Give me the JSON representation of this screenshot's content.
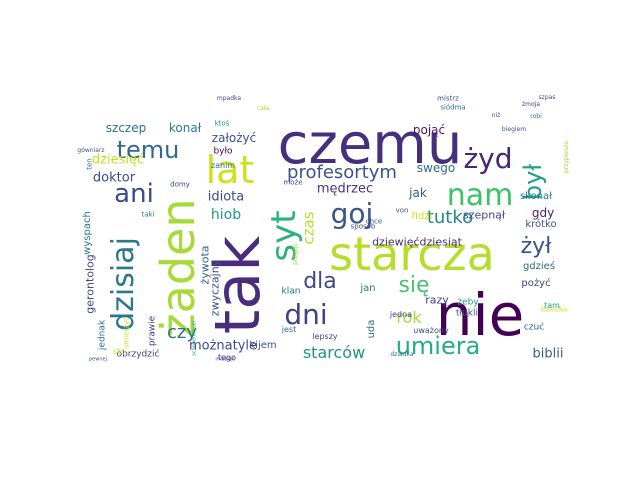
{
  "word_cloud": {
    "palette": [
      "#440154",
      "#46327e",
      "#365c8d",
      "#277f8e",
      "#1fa187",
      "#4ac16d",
      "#a0da39",
      "#c8e020"
    ],
    "words": [
      {
        "text": "czemu",
        "color": "#46307e",
        "rotated": false,
        "weight": 1.0
      },
      {
        "text": "nie",
        "color": "#440154",
        "rotated": false,
        "weight": 0.97
      },
      {
        "text": "tak",
        "color": "#472d7b",
        "rotated": true,
        "weight": 0.9
      },
      {
        "text": "starcza",
        "color": "#b5de2b",
        "rotated": false,
        "weight": 0.85
      },
      {
        "text": "żaden",
        "color": "#a5db36",
        "rotated": true,
        "weight": 0.78
      },
      {
        "text": "lat",
        "color": "#d0e11c",
        "rotated": false,
        "weight": 0.65
      },
      {
        "text": "nam",
        "color": "#3ec06b",
        "rotated": false,
        "weight": 0.62
      },
      {
        "text": "syt",
        "color": "#2db27d",
        "rotated": true,
        "weight": 0.6
      },
      {
        "text": "goj",
        "color": "#39558c",
        "rotated": false,
        "weight": 0.55
      },
      {
        "text": "dzisiaj",
        "color": "#2a788e",
        "rotated": true,
        "weight": 0.55
      },
      {
        "text": "ani",
        "color": "#3e4a89",
        "rotated": false,
        "weight": 0.5
      },
      {
        "text": "żyd",
        "color": "#482576",
        "rotated": false,
        "weight": 0.5
      },
      {
        "text": "dni",
        "color": "#424086",
        "rotated": false,
        "weight": 0.48
      },
      {
        "text": "umiera",
        "color": "#26ad81",
        "rotated": false,
        "weight": 0.47
      },
      {
        "text": "temu",
        "color": "#31688e",
        "rotated": false,
        "weight": 0.45
      },
      {
        "text": "był",
        "color": "#1f9e89",
        "rotated": true,
        "weight": 0.42
      },
      {
        "text": "żył",
        "color": "#3b518b",
        "rotated": false,
        "weight": 0.4
      },
      {
        "text": "się",
        "color": "#4ac16d",
        "rotated": false,
        "weight": 0.4
      },
      {
        "text": "dla",
        "color": "#3e4989",
        "rotated": false,
        "weight": 0.38
      },
      {
        "text": "profesortym",
        "color": "#3b528b",
        "rotated": false,
        "weight": 0.35
      },
      {
        "text": "tutko",
        "color": "#24878e",
        "rotated": false,
        "weight": 0.34
      },
      {
        "text": "czy",
        "color": "#2e6e8e",
        "rotated": false,
        "weight": 0.33
      },
      {
        "text": "czas",
        "color": "#b8de29",
        "rotated": true,
        "weight": 0.3
      },
      {
        "text": "rok",
        "color": "#a2da37",
        "rotated": false,
        "weight": 0.3
      },
      {
        "text": "starców",
        "color": "#21918c",
        "rotated": false,
        "weight": 0.28
      },
      {
        "text": "hiob",
        "color": "#1f998a",
        "rotated": false,
        "weight": 0.27
      },
      {
        "text": "mędrzec",
        "color": "#453581",
        "rotated": false,
        "weight": 0.26
      },
      {
        "text": "możnatyle",
        "color": "#404588",
        "rotated": false,
        "weight": 0.26
      },
      {
        "text": "biblii",
        "color": "#355f8d",
        "rotated": false,
        "weight": 0.25
      },
      {
        "text": "dziesięć",
        "color": "#c2df23",
        "rotated": false,
        "weight": 0.24
      },
      {
        "text": "doktor",
        "color": "#3f4788",
        "rotated": false,
        "weight": 0.24
      },
      {
        "text": "idiota",
        "color": "#3e4c8a",
        "rotated": false,
        "weight": 0.24
      },
      {
        "text": "szczep",
        "color": "#2c738e",
        "rotated": false,
        "weight": 0.22
      },
      {
        "text": "konał",
        "color": "#297b8e",
        "rotated": false,
        "weight": 0.22
      },
      {
        "text": "założyć",
        "color": "#3b528b",
        "rotated": false,
        "weight": 0.21
      },
      {
        "text": "pojąć",
        "color": "#48186a",
        "rotated": false,
        "weight": 0.2
      },
      {
        "text": "swego",
        "color": "#2f6c8e",
        "rotated": false,
        "weight": 0.2
      },
      {
        "text": "jak",
        "color": "#34608d",
        "rotated": false,
        "weight": 0.2
      },
      {
        "text": "gdy",
        "color": "#482173",
        "rotated": false,
        "weight": 0.2
      },
      {
        "text": "zwyczajny",
        "color": "#3a538b",
        "rotated": true,
        "weight": 0.19
      },
      {
        "text": "gerontolog",
        "color": "#3e4a89",
        "rotated": true,
        "weight": 0.19
      },
      {
        "text": "żywota",
        "color": "#365d8d",
        "rotated": true,
        "weight": 0.18
      },
      {
        "text": "razy",
        "color": "#414487",
        "rotated": false,
        "weight": 0.18
      },
      {
        "text": "szepnął",
        "color": "#3f4889",
        "rotated": false,
        "weight": 0.16
      },
      {
        "text": "dziewięćdziesiąt",
        "color": "#482979",
        "rotated": false,
        "weight": 0.16
      },
      {
        "text": "skonał",
        "color": "#2a768e",
        "rotated": false,
        "weight": 0.16
      },
      {
        "text": "krótko",
        "color": "#39568c",
        "rotated": false,
        "weight": 0.15
      },
      {
        "text": "jan",
        "color": "#2c728e",
        "rotated": false,
        "weight": 0.16
      },
      {
        "text": "uda",
        "color": "#31678e",
        "rotated": true,
        "weight": 0.16
      },
      {
        "text": "pożyć",
        "color": "#433e85",
        "rotated": false,
        "weight": 0.16
      },
      {
        "text": "gdzieś",
        "color": "#30698e",
        "rotated": false,
        "weight": 0.14
      },
      {
        "text": "wyspach",
        "color": "#2a778e",
        "rotated": true,
        "weight": 0.14
      },
      {
        "text": "fidżi",
        "color": "#d8e219",
        "rotated": false,
        "weight": 0.13
      },
      {
        "text": "jednak",
        "color": "#2f6b8e",
        "rotated": true,
        "weight": 0.13
      },
      {
        "text": "prawie",
        "color": "#453882",
        "rotated": true,
        "weight": 0.13
      },
      {
        "text": "kijem",
        "color": "#3d4d8a",
        "rotated": false,
        "weight": 0.13
      },
      {
        "text": "było",
        "color": "#440154",
        "rotated": false,
        "weight": 0.12
      },
      {
        "text": "tłukli",
        "color": "#3c4f8a",
        "rotated": false,
        "weight": 0.12
      },
      {
        "text": "żeby",
        "color": "#1f958b",
        "rotated": false,
        "weight": 0.12
      },
      {
        "text": "klan",
        "color": "#2d708e",
        "rotated": false,
        "weight": 0.12
      },
      {
        "text": "obrzydzić",
        "color": "#433d84",
        "rotated": false,
        "weight": 0.12
      },
      {
        "text": "czuć",
        "color": "#31688e",
        "rotated": false,
        "weight": 0.12
      },
      {
        "text": "tam",
        "color": "#1fa088",
        "rotated": false,
        "weight": 0.12
      },
      {
        "text": "uważony",
        "color": "#3f4788",
        "rotated": false,
        "weight": 0.11
      },
      {
        "text": "zanim",
        "color": "#2c738e",
        "rotated": false,
        "weight": 0.11
      },
      {
        "text": "jedna",
        "color": "#433e85",
        "rotated": false,
        "weight": 0.1
      },
      {
        "text": "jest",
        "color": "#2c728e",
        "rotated": false,
        "weight": 0.1
      },
      {
        "text": "lepszy",
        "color": "#3f4889",
        "rotated": false,
        "weight": 0.1
      },
      {
        "text": "siódma",
        "color": "#2d718e",
        "rotated": false,
        "weight": 0.1
      },
      {
        "text": "ten",
        "color": "#2c728e",
        "rotated": true,
        "weight": 0.1
      },
      {
        "text": "ktoś",
        "color": "#1f9a8a",
        "rotated": false,
        "weight": 0.09
      },
      {
        "text": "tego",
        "color": "#472d7b",
        "rotated": false,
        "weight": 0.09
      },
      {
        "text": "sto",
        "color": "#c8e020",
        "rotated": false,
        "weight": 0.09
      },
      {
        "text": "sposób",
        "color": "#3e4c8a",
        "rotated": false,
        "weight": 0.09
      },
      {
        "text": "chce",
        "color": "#3b528b",
        "rotated": false,
        "weight": 0.09
      },
      {
        "text": "dziecka",
        "color": "#cae11f",
        "rotated": false,
        "weight": 0.09
      },
      {
        "text": "umierzyć",
        "color": "#cde11d",
        "rotated": true,
        "weight": 0.08
      },
      {
        "text": "domy",
        "color": "#3f4788",
        "rotated": false,
        "weight": 0.08
      },
      {
        "text": "taki",
        "color": "#2a788e",
        "rotated": false,
        "weight": 0.08
      },
      {
        "text": "może",
        "color": "#3e4a89",
        "rotated": false,
        "weight": 0.08
      },
      {
        "text": "von",
        "color": "#3b528b",
        "rotated": false,
        "weight": 0.08
      },
      {
        "text": "mistrz",
        "color": "#3b528b",
        "rotated": false,
        "weight": 0.08
      },
      {
        "text": "mpadka",
        "color": "#3f4788",
        "rotated": false,
        "weight": 0.07
      },
      {
        "text": "niż",
        "color": "#3b528b",
        "rotated": false,
        "weight": 0.08
      },
      {
        "text": "żmoja",
        "color": "#414487",
        "rotated": false,
        "weight": 0.07
      },
      {
        "text": "szpas",
        "color": "#3b528b",
        "rotated": false,
        "weight": 0.07
      },
      {
        "text": "przypiesza",
        "color": "#a0da39",
        "rotated": true,
        "weight": 0.07
      },
      {
        "text": "robi",
        "color": "#2c728e",
        "rotated": false,
        "weight": 0.06
      },
      {
        "text": "biegiem",
        "color": "#3b528b",
        "rotated": false,
        "weight": 0.06
      },
      {
        "text": "gówniarz",
        "color": "#3b528b",
        "rotated": false,
        "weight": 0.06
      },
      {
        "text": "cała",
        "color": "#a0da39",
        "rotated": false,
        "weight": 0.06
      },
      {
        "text": "przyjąć",
        "color": "#a0da39",
        "rotated": true,
        "weight": 0.06
      },
      {
        "text": "dziadka",
        "color": "#2c728e",
        "rotated": false,
        "weight": 0.07
      },
      {
        "text": "pewnej",
        "color": "#3b528b",
        "rotated": false,
        "weight": 0.06
      },
      {
        "text": "miesiąc",
        "color": "#3b528b",
        "rotated": false,
        "weight": 0.06
      },
      {
        "text": "schopenhauer",
        "color": "#1fa187",
        "rotated": true,
        "weight": 0.05
      }
    ]
  }
}
